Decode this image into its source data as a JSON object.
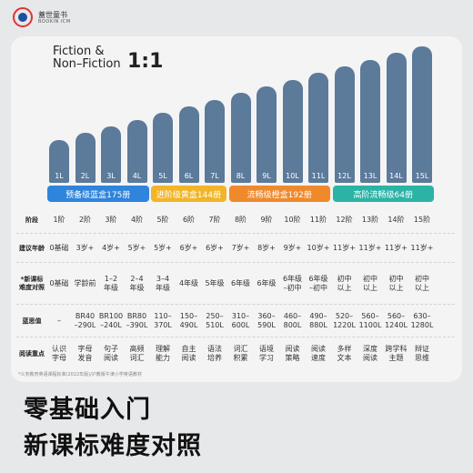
{
  "brand": {
    "name": "蓋世童书",
    "sub": "BOOKIN ICM"
  },
  "headline": {
    "line1": "Fiction &",
    "line2": "Non–Fiction",
    "ratio": "1:1"
  },
  "chart_data": {
    "type": "bar",
    "categories": [
      "1L",
      "2L",
      "3L",
      "4L",
      "5L",
      "6L",
      "7L",
      "8L",
      "9L",
      "10L",
      "11L",
      "12L",
      "13L",
      "14L",
      "15L"
    ],
    "values": [
      1,
      2,
      3,
      4,
      5,
      6,
      7,
      8,
      9,
      10,
      11,
      12,
      13,
      14,
      15
    ],
    "title": "",
    "xlabel": "",
    "ylabel": "",
    "colors": {
      "bar": "#5c7a9a"
    }
  },
  "bands": [
    {
      "label": "预备级蓝盒175册",
      "color": "#2f84dc"
    },
    {
      "label": "进阶级黄盒144册",
      "color": "#f2b529"
    },
    {
      "label": "流畅级橙盒192册",
      "color": "#ef8a2c"
    },
    {
      "label": "高阶流畅级64册",
      "color": "#2bb3a6"
    }
  ],
  "table": {
    "rows": [
      {
        "head": [
          "阶段"
        ],
        "cells": [
          [
            "1阶"
          ],
          [
            "2阶"
          ],
          [
            "3阶"
          ],
          [
            "4阶"
          ],
          [
            "5阶"
          ],
          [
            "6阶"
          ],
          [
            "7阶"
          ],
          [
            "8阶"
          ],
          [
            "9阶"
          ],
          [
            "10阶"
          ],
          [
            "11阶"
          ],
          [
            "12阶"
          ],
          [
            "13阶"
          ],
          [
            "14阶"
          ],
          [
            "15阶"
          ]
        ]
      },
      {
        "head": [
          "建议年龄"
        ],
        "cells": [
          [
            "0基础"
          ],
          [
            "3岁+"
          ],
          [
            "4岁+"
          ],
          [
            "5岁+"
          ],
          [
            "5岁+"
          ],
          [
            "6岁+"
          ],
          [
            "6岁+"
          ],
          [
            "7岁+"
          ],
          [
            "8岁+"
          ],
          [
            "9岁+"
          ],
          [
            "10岁+"
          ],
          [
            "11岁+"
          ],
          [
            "11岁+"
          ],
          [
            "11岁+"
          ],
          [
            "11岁+"
          ]
        ]
      },
      {
        "head": [
          "*新课标",
          "难度对照"
        ],
        "cells": [
          [
            "0基础"
          ],
          [
            "学龄前"
          ],
          [
            "1–2",
            "年级"
          ],
          [
            "2–4",
            "年级"
          ],
          [
            "3–4",
            "年级"
          ],
          [
            "4年级"
          ],
          [
            "5年级"
          ],
          [
            "6年级"
          ],
          [
            "6年级"
          ],
          [
            "6年级",
            "–初中"
          ],
          [
            "6年级",
            "–初中"
          ],
          [
            "初中",
            "以上"
          ],
          [
            "初中",
            "以上"
          ],
          [
            "初中",
            "以上"
          ],
          [
            "初中",
            "以上"
          ]
        ]
      },
      {
        "head": [
          "蓝思值"
        ],
        "cells": [
          [
            "–"
          ],
          [
            "BR40",
            "–290L"
          ],
          [
            "BR100",
            "–240L"
          ],
          [
            "BR80",
            "–390L"
          ],
          [
            "110–",
            "370L"
          ],
          [
            "150–",
            "490L"
          ],
          [
            "250–",
            "510L"
          ],
          [
            "310–",
            "600L"
          ],
          [
            "360–",
            "590L"
          ],
          [
            "460–",
            "800L"
          ],
          [
            "490–",
            "880L"
          ],
          [
            "520–",
            "1220L"
          ],
          [
            "560–",
            "1100L"
          ],
          [
            "560–",
            "1240L"
          ],
          [
            "630–",
            "1280L"
          ]
        ]
      },
      {
        "head": [
          "阅读重点"
        ],
        "cells": [
          [
            "认识",
            "字母"
          ],
          [
            "字母",
            "发音"
          ],
          [
            "句子",
            "阅读"
          ],
          [
            "高频",
            "词汇"
          ],
          [
            "理解",
            "能力"
          ],
          [
            "自主",
            "阅读"
          ],
          [
            "语法",
            "培养"
          ],
          [
            "词汇",
            "积累"
          ],
          [
            "语境",
            "学习"
          ],
          [
            "阅读",
            "策略"
          ],
          [
            "阅读",
            "速度"
          ],
          [
            "多样",
            "文本"
          ],
          [
            "深度",
            "阅读"
          ],
          [
            "跨学科",
            "主题"
          ],
          [
            "辩证",
            "思维"
          ]
        ]
      }
    ]
  },
  "note": "*义务教育英语课程标准(2022年版)/沪教版牛津小学英语教材",
  "slogan": {
    "line1": "零基础入门",
    "line2": "新课标难度对照"
  }
}
